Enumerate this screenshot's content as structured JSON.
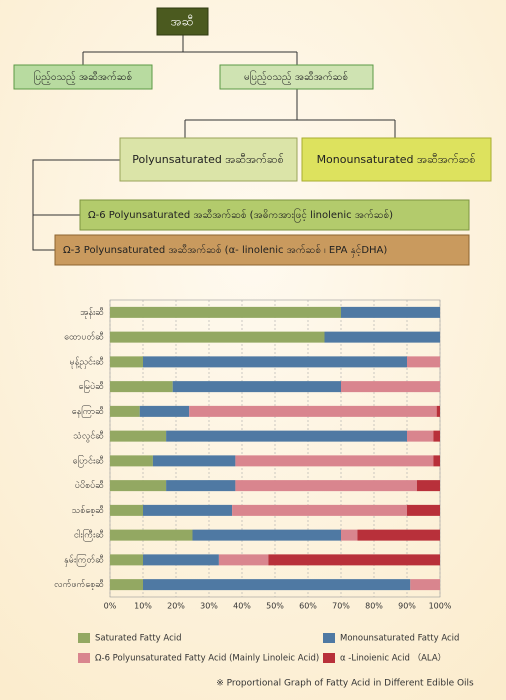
{
  "diagram": {
    "nodes": [
      "အဆီ",
      "ပြည့်ဝသည့် အဆီအက်ဆစ်",
      "မပြည့်ဝသည့် အဆီအက်ဆစ်",
      "Polyunsaturated အဆီအက်ဆစ်",
      "Monounsaturated အဆီအက်ဆစ်",
      "Ω-6 Polyunsaturated အဆီအက်ဆစ် (အဓိကအားဖြင့် linolenic အက်ဆစ်)",
      "Ω-3 Polyunsaturated အဆီအက်ဆစ် (α- linolenic အက်ဆစ် ၊ EPA နှင့်DHA)"
    ]
  },
  "chart_data": {
    "type": "stacked-barh",
    "categories": [
      "အုန်းဆီ",
      "ထောပတ်ဆီ",
      "မုန့်ညှင်းဆီ",
      "မြေပဲဆီ",
      "နေကြာဆီ",
      "သံလွင်ဆီ",
      "ပြောင်းဆီ",
      "ပဲပိစပ်ဆီ",
      "သစ်စေ့ဆီ",
      "ငါးကြီးဆီ",
      "နှမ်းကြတ်ဆီ",
      "လက်ဖက်စေ့ဆီ"
    ],
    "series": [
      {
        "name": "Saturated Fatty Acid",
        "color": "#93a862",
        "values": [
          70,
          65,
          10,
          19,
          9,
          17,
          13,
          17,
          10,
          25,
          10,
          10
        ]
      },
      {
        "name": "Monounsaturated Fatty Acid",
        "color": "#4f79a3",
        "values": [
          30,
          35,
          80,
          51,
          15,
          73,
          25,
          21,
          27,
          45,
          23,
          81
        ]
      },
      {
        "name": "Ω-6 Polyunsaturated Fatty Acid (Mainly Linoleic Acid)",
        "color": "#d9858e",
        "values": [
          0,
          0,
          10,
          30,
          75,
          8,
          60,
          55,
          53,
          5,
          15,
          9
        ]
      },
      {
        "name": "α -Linoienic Acid （ALA）",
        "color": "#b8303a",
        "values": [
          0,
          0,
          0,
          0,
          1,
          2,
          2,
          7,
          10,
          25,
          52,
          0
        ]
      }
    ],
    "xlim": [
      0,
      100
    ],
    "xticks": [
      {
        "value": 0,
        "label": "0%"
      },
      {
        "value": 10,
        "label": "10%"
      },
      {
        "value": 20,
        "label": "20%"
      },
      {
        "value": 30,
        "label": "30%"
      },
      {
        "value": 40,
        "label": "40%"
      },
      {
        "value": 50,
        "label": "50%"
      },
      {
        "value": 60,
        "label": "60%"
      },
      {
        "value": 70,
        "label": "70%"
      },
      {
        "value": 80,
        "label": "80%"
      },
      {
        "value": 90,
        "label": "90%"
      },
      {
        "value": 100,
        "label": "100%"
      }
    ],
    "grid": true,
    "caption": "※ Proportional Graph of Fatty Acid in Different Edible Oils"
  }
}
